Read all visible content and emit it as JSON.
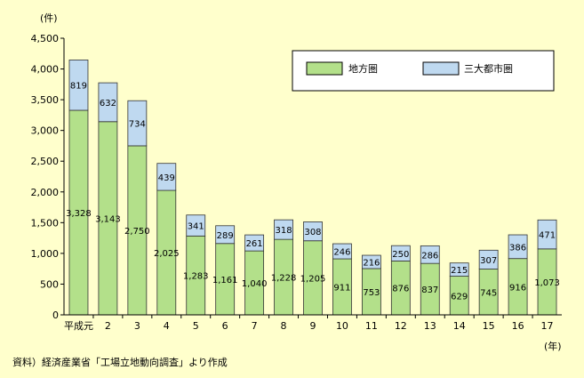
{
  "chart_data": {
    "type": "bar",
    "stacked": true,
    "ylabel": "(件)",
    "xlabel": "(年)",
    "ylim": [
      0,
      4500
    ],
    "yticks": [
      0,
      500,
      1000,
      1500,
      2000,
      2500,
      3000,
      3500,
      4000,
      4500
    ],
    "ytick_labels": [
      "0",
      "500",
      "1,000",
      "1,500",
      "2,000",
      "2,500",
      "3,000",
      "3,500",
      "4,000",
      "4,500"
    ],
    "grid": false,
    "legend_position": "top-right",
    "categories": [
      "平成元",
      "2",
      "3",
      "4",
      "5",
      "6",
      "7",
      "8",
      "9",
      "10",
      "11",
      "12",
      "13",
      "14",
      "15",
      "16",
      "17"
    ],
    "series": [
      {
        "name": "地方圏",
        "color": "#B3E08A",
        "values": [
          3328,
          3143,
          2750,
          2025,
          1283,
          1161,
          1040,
          1228,
          1205,
          911,
          753,
          876,
          837,
          629,
          745,
          916,
          1073
        ],
        "labels": [
          "3,328",
          "3,143",
          "2,750",
          "2,025",
          "1,283",
          "1,161",
          "1,040",
          "1,228",
          "1,205",
          "911",
          "753",
          "876",
          "837",
          "629",
          "745",
          "916",
          "1,073"
        ]
      },
      {
        "name": "三大都市圏",
        "color": "#BFD9F0",
        "values": [
          819,
          632,
          734,
          439,
          341,
          289,
          261,
          318,
          308,
          246,
          216,
          250,
          286,
          215,
          307,
          386,
          471
        ],
        "labels": [
          "819",
          "632",
          "734",
          "439",
          "341",
          "289",
          "261",
          "318",
          "308",
          "246",
          "216",
          "250",
          "286",
          "215",
          "307",
          "386",
          "471"
        ]
      }
    ]
  },
  "source_note": "資料）経済産業省「工場立地動向調査」より作成"
}
